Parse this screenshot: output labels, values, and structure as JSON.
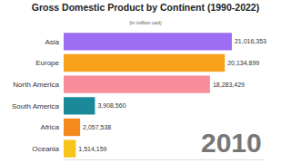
{
  "chart_data": {
    "type": "bar",
    "title": "Gross Domestic Product by Continent (1990-2022)",
    "subtitle": "(in million usd)",
    "orientation": "horizontal",
    "categories": [
      "Asia",
      "Europe",
      "North America",
      "South America",
      "Africa",
      "Oceania"
    ],
    "values": [
      21016353,
      20134899,
      18283429,
      3908560,
      2057538,
      1514159
    ],
    "value_labels": [
      "21,016,353",
      "20,134,899",
      "18,283,429",
      "3,908,560",
      "2,057,538",
      "1,514,159"
    ],
    "colors": [
      "#9c6cf2",
      "#f9a11b",
      "#f98c99",
      "#1a8a9b",
      "#f48a1c",
      "#f6c51c"
    ],
    "data_labels": true,
    "tick_labels": "y",
    "grid": false,
    "xlim": [
      0,
      25000000
    ],
    "xticks": [],
    "annotations": [
      "2010"
    ]
  }
}
